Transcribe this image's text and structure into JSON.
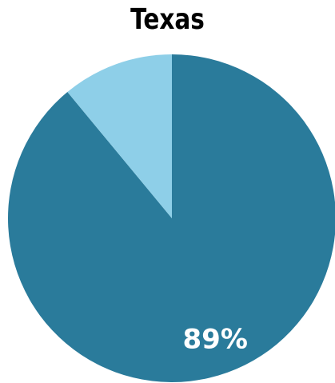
{
  "chart_data": {
    "type": "pie",
    "title": "Texas",
    "slices": [
      {
        "value": 89,
        "label": "89%",
        "color": "#2a7b9b"
      },
      {
        "value": 11,
        "label": "",
        "color": "#8ecfe8"
      }
    ],
    "start_angle_deg": 0,
    "direction": "clockwise"
  }
}
